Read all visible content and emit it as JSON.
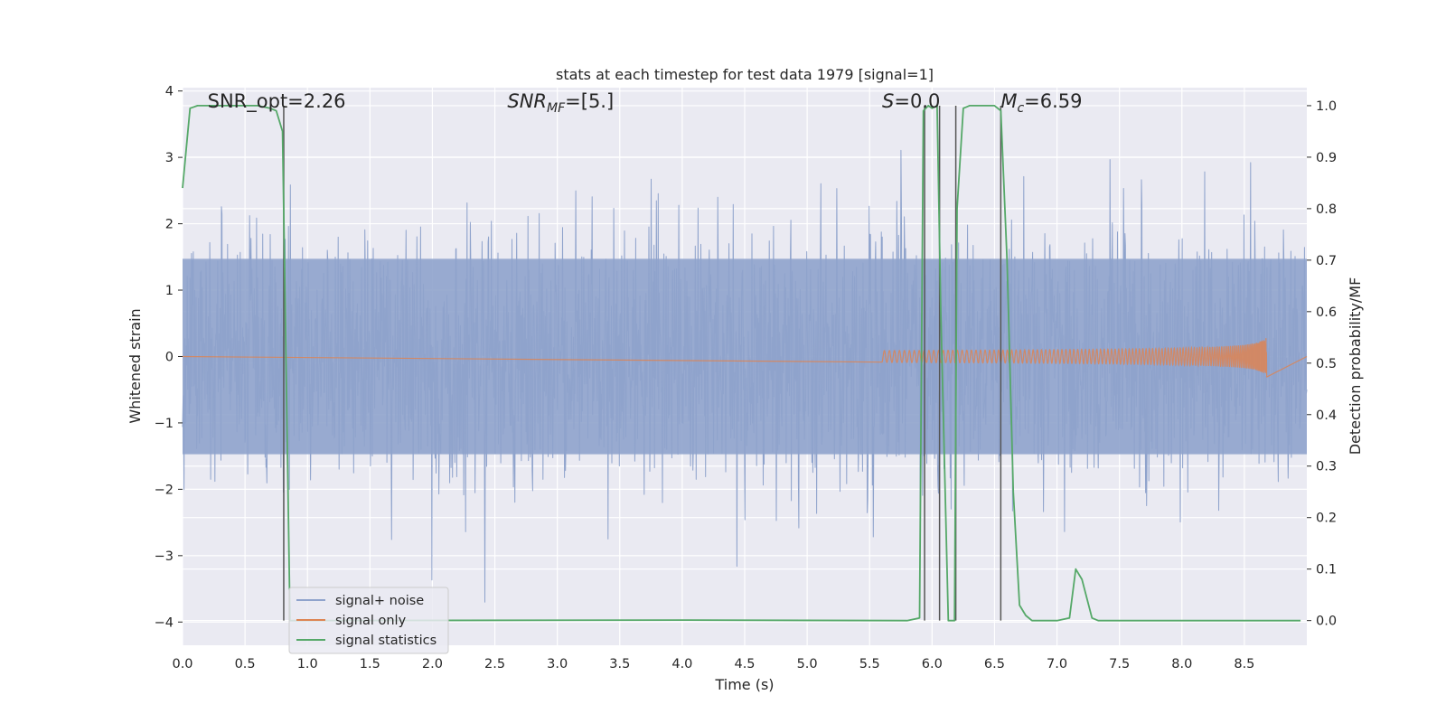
{
  "chart_data": {
    "type": "line",
    "title": "stats at each timestep for test data 1979 [signal=1]",
    "xlabel": "Time (s)",
    "ylabel": "Whitened strain",
    "y2label": "Detection probability/MF",
    "xlim": [
      0.0,
      9.0
    ],
    "ylim": [
      -4.35,
      4.05
    ],
    "y2lim": [
      -0.048,
      1.035
    ],
    "x_ticks": [
      "0.0",
      "0.5",
      "1.0",
      "1.5",
      "2.0",
      "2.5",
      "3.0",
      "3.5",
      "4.0",
      "4.5",
      "5.0",
      "5.5",
      "6.0",
      "6.5",
      "7.0",
      "7.5",
      "8.0",
      "8.5"
    ],
    "y_ticks": [
      "4",
      "3",
      "2",
      "1",
      "0",
      "−1",
      "−2",
      "−3",
      "−4"
    ],
    "y2_ticks": [
      "1.0",
      "0.9",
      "0.8",
      "0.7",
      "0.6",
      "0.5",
      "0.4",
      "0.3",
      "0.2",
      "0.1",
      "0.0"
    ],
    "grid": true,
    "legend_position": "lower-left",
    "annotations": [
      {
        "key": "snr_opt",
        "text": "SNR_opt=2.26",
        "x": 0.2,
        "y": 3.75
      },
      {
        "key": "snr_mf",
        "text": "=[5.]",
        "math_main": "SNR",
        "math_sub": "MF",
        "x": 2.6,
        "y": 3.75
      },
      {
        "key": "s_stat",
        "text": "=0.0",
        "math_main": "S",
        "x": 5.6,
        "y": 3.75
      },
      {
        "key": "mc",
        "text": "=6.59",
        "math_main": "M",
        "math_sub": "c",
        "x": 6.55,
        "y": 3.75
      }
    ],
    "series": [
      {
        "name": "signal+ noise",
        "axis": "left",
        "color": "#8fa3cc",
        "description_range": [
          -4.0,
          3.8
        ],
        "envelope": {
          "low_typical": -1.6,
          "high_typical": 1.6,
          "spike_high": 3.75,
          "spike_low": -4.0
        }
      },
      {
        "name": "signal only",
        "axis": "left",
        "color": "#dd8452",
        "chirp": {
          "start": 5.6,
          "end": 8.68,
          "peak_amplitude": 0.35,
          "merger_time": 8.68
        }
      },
      {
        "name": "signal statistics",
        "axis": "right",
        "color": "#55a868",
        "x": [
          0.0,
          0.06,
          0.12,
          0.2,
          0.5,
          0.6,
          0.7,
          0.75,
          0.8,
          0.86,
          0.9,
          4.0,
          5.8,
          5.9,
          5.93,
          5.97,
          6.0,
          6.04,
          6.07,
          6.13,
          6.18,
          6.2,
          6.25,
          6.3,
          6.5,
          6.55,
          6.6,
          6.65,
          6.7,
          6.75,
          6.8,
          7.0,
          7.1,
          7.15,
          7.2,
          7.28,
          7.33,
          7.4,
          8.95
        ],
        "y": [
          0.84,
          0.995,
          1.0,
          1.0,
          1.0,
          1.0,
          0.995,
          0.99,
          0.95,
          0.0,
          0.0,
          0.001,
          0.0,
          0.005,
          0.99,
          1.0,
          0.995,
          1.0,
          0.6,
          0.0,
          0.0,
          0.8,
          0.995,
          1.0,
          1.0,
          0.99,
          0.7,
          0.25,
          0.03,
          0.01,
          0.0,
          0.0,
          0.005,
          0.1,
          0.08,
          0.005,
          0.0,
          0.0,
          0.0
        ]
      }
    ],
    "vertical_markers": [
      0.81,
      5.94,
      6.06,
      6.19,
      6.55
    ]
  }
}
